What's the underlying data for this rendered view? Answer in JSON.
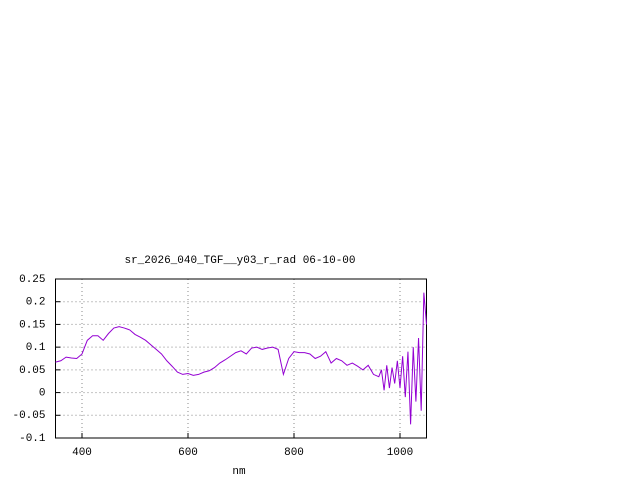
{
  "chart_data": {
    "type": "line",
    "title": "sr_2026_040_TGF__y03_r_rad 06-10-00",
    "x_label": "nm",
    "x": [
      350,
      360,
      370,
      380,
      390,
      400,
      410,
      420,
      430,
      440,
      450,
      460,
      470,
      480,
      490,
      500,
      510,
      520,
      530,
      540,
      550,
      560,
      570,
      580,
      590,
      600,
      610,
      620,
      630,
      640,
      650,
      660,
      670,
      680,
      690,
      700,
      710,
      720,
      730,
      740,
      750,
      760,
      770,
      780,
      790,
      800,
      810,
      820,
      830,
      840,
      850,
      860,
      870,
      880,
      890,
      900,
      910,
      920,
      930,
      940,
      950,
      960,
      965,
      970,
      975,
      980,
      985,
      990,
      995,
      1000,
      1005,
      1010,
      1015,
      1020,
      1025,
      1030,
      1035,
      1040,
      1045,
      1050
    ],
    "series": [
      {
        "color": "#9400d3",
        "values": [
          0.067,
          0.07,
          0.078,
          0.076,
          0.075,
          0.085,
          0.115,
          0.125,
          0.125,
          0.115,
          0.13,
          0.142,
          0.145,
          0.142,
          0.138,
          0.128,
          0.122,
          0.115,
          0.105,
          0.095,
          0.085,
          0.07,
          0.058,
          0.045,
          0.04,
          0.042,
          0.038,
          0.04,
          0.045,
          0.048,
          0.055,
          0.065,
          0.072,
          0.08,
          0.088,
          0.092,
          0.085,
          0.098,
          0.1,
          0.095,
          0.098,
          0.1,
          0.095,
          0.04,
          0.075,
          0.09,
          0.088,
          0.088,
          0.085,
          0.075,
          0.08,
          0.09,
          0.065,
          0.075,
          0.07,
          0.06,
          0.065,
          0.058,
          0.05,
          0.06,
          0.04,
          0.035,
          0.05,
          0.005,
          0.06,
          0.01,
          0.055,
          0.02,
          0.07,
          0.01,
          0.08,
          -0.01,
          0.09,
          -0.07,
          0.1,
          -0.02,
          0.12,
          -0.04,
          0.22,
          0.15
        ]
      }
    ],
    "xlim": [
      350,
      1050
    ],
    "xticks": [
      400,
      600,
      800,
      1000
    ],
    "ylim": [
      -0.1,
      0.25
    ],
    "yticks": [
      0.25,
      0.2,
      0.15,
      0.1,
      0.05,
      0,
      -0.05,
      -0.1
    ],
    "grid": true
  }
}
